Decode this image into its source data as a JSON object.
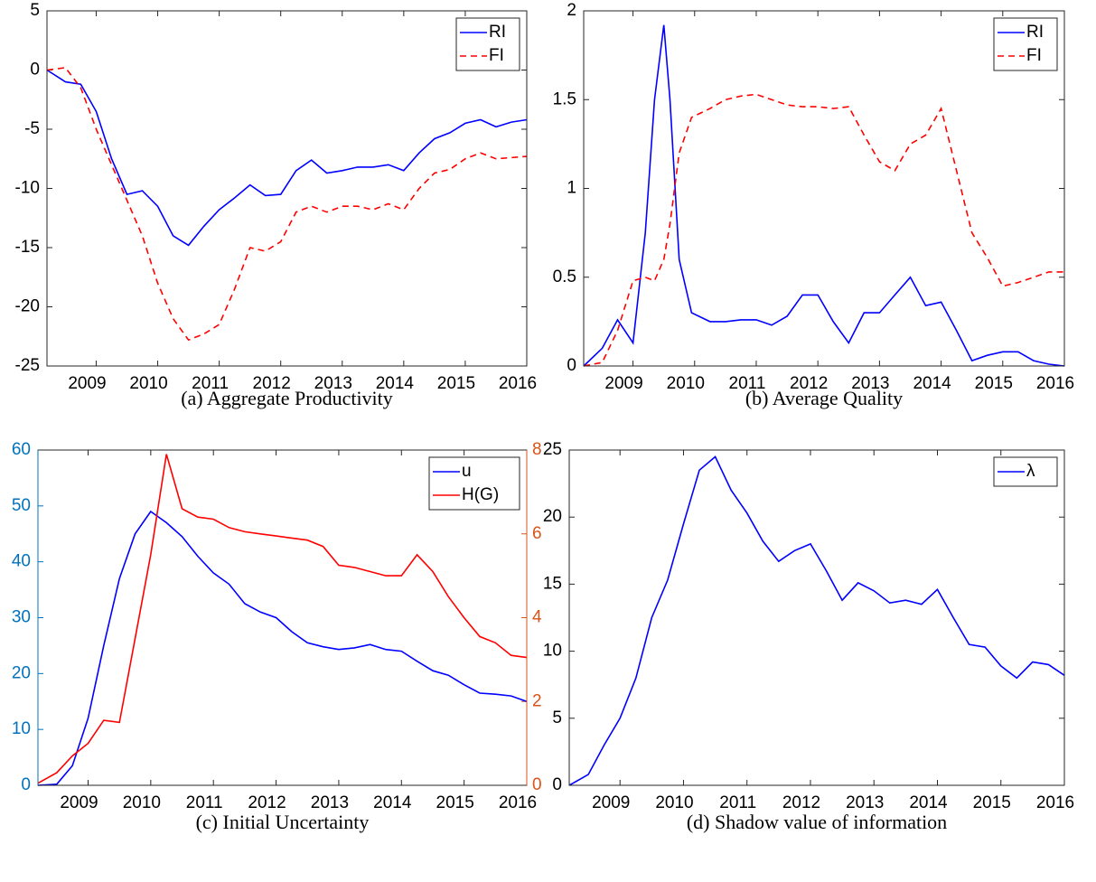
{
  "chart_data": [
    {
      "type": "line",
      "caption": "(a) Aggregate Productivity",
      "x": [
        2008.2,
        2008.5,
        2008.75,
        2009,
        2009.25,
        2009.5,
        2009.75,
        2010,
        2010.25,
        2010.5,
        2010.75,
        2011,
        2011.25,
        2011.5,
        2011.75,
        2012,
        2012.25,
        2012.5,
        2012.75,
        2013,
        2013.25,
        2013.5,
        2013.75,
        2014,
        2014.25,
        2014.5,
        2014.75,
        2015,
        2015.25,
        2015.5,
        2015.75,
        2016
      ],
      "series": [
        {
          "name": "RI",
          "color": "#0000ff",
          "style": "solid",
          "values": [
            0,
            -1,
            -1.2,
            -3.5,
            -7.5,
            -10.5,
            -10.2,
            -11.5,
            -14,
            -14.8,
            -13.2,
            -11.8,
            -10.8,
            -9.7,
            -10.6,
            -10.5,
            -8.5,
            -7.6,
            -8.7,
            -8.5,
            -8.2,
            -8.2,
            -8,
            -8.5,
            -7,
            -5.8,
            -5.3,
            -4.5,
            -4.2,
            -4.8,
            -4.4,
            -4.2
          ]
        },
        {
          "name": "FI",
          "color": "#ff0000",
          "style": "dashed",
          "values": [
            0,
            0.2,
            -1.5,
            -5,
            -8,
            -11,
            -14,
            -18,
            -21,
            -22.8,
            -22.3,
            -21.5,
            -18.5,
            -15,
            -15.3,
            -14.5,
            -12,
            -11.5,
            -12,
            -11.5,
            -11.5,
            -11.8,
            -11.3,
            -11.8,
            -10,
            -8.7,
            -8.4,
            -7.5,
            -7,
            -7.5,
            -7.4,
            -7.3
          ]
        }
      ],
      "xlim": [
        2008.2,
        2016
      ],
      "xticks": [
        2009,
        2010,
        2011,
        2012,
        2013,
        2014,
        2015,
        2016
      ],
      "ylim": [
        -25,
        5
      ],
      "yticks": [
        -25,
        -20,
        -15,
        -10,
        -5,
        0,
        5
      ],
      "legend": "northeast"
    },
    {
      "type": "line",
      "caption": "(b) Average Quality",
      "x": [
        2008.2,
        2008.5,
        2008.75,
        2009,
        2009.2,
        2009.35,
        2009.5,
        2009.6,
        2009.75,
        2009.95,
        2010.25,
        2010.5,
        2010.75,
        2011,
        2011.25,
        2011.5,
        2011.75,
        2012,
        2012.25,
        2012.5,
        2012.75,
        2013,
        2013.25,
        2013.5,
        2013.75,
        2014,
        2014.25,
        2014.5,
        2014.75,
        2015,
        2015.25,
        2015.5,
        2015.75,
        2016
      ],
      "series": [
        {
          "name": "RI",
          "color": "#0000ff",
          "style": "solid",
          "values": [
            0,
            0.1,
            0.26,
            0.13,
            0.75,
            1.5,
            1.92,
            1.5,
            0.6,
            0.3,
            0.25,
            0.25,
            0.26,
            0.26,
            0.23,
            0.28,
            0.4,
            0.4,
            0.25,
            0.13,
            0.3,
            0.3,
            0.4,
            0.5,
            0.34,
            0.36,
            0.2,
            0.03,
            0.06,
            0.08,
            0.08,
            0.03,
            0.01,
            0
          ]
        },
        {
          "name": "FI",
          "color": "#ff0000",
          "style": "dashed",
          "values": [
            0,
            0.02,
            0.2,
            0.48,
            0.5,
            0.48,
            0.6,
            0.8,
            1.2,
            1.4,
            1.45,
            1.5,
            1.52,
            1.53,
            1.5,
            1.47,
            1.46,
            1.46,
            1.45,
            1.46,
            1.3,
            1.15,
            1.1,
            1.25,
            1.3,
            1.45,
            1.1,
            0.75,
            0.61,
            0.45,
            0.47,
            0.5,
            0.53,
            0.53
          ]
        }
      ],
      "xlim": [
        2008.2,
        2016
      ],
      "xticks": [
        2009,
        2010,
        2011,
        2012,
        2013,
        2014,
        2015,
        2016
      ],
      "ylim": [
        0,
        2
      ],
      "yticks": [
        0,
        0.5,
        1,
        1.5,
        2
      ],
      "legend": "northeast"
    },
    {
      "type": "line",
      "caption": "(c) Initial Uncertainty",
      "x": [
        2008.2,
        2008.5,
        2008.75,
        2009,
        2009.25,
        2009.5,
        2009.75,
        2010,
        2010.25,
        2010.5,
        2010.75,
        2011,
        2011.25,
        2011.5,
        2011.75,
        2012,
        2012.25,
        2012.5,
        2012.75,
        2013,
        2013.25,
        2013.5,
        2013.75,
        2014,
        2014.25,
        2014.5,
        2014.75,
        2015,
        2015.25,
        2015.5,
        2015.75,
        2016
      ],
      "series": [
        {
          "name": "u",
          "color": "#0000ff",
          "style": "solid",
          "values": [
            0,
            0.2,
            3.5,
            12,
            25,
            37,
            45,
            49,
            47,
            44.5,
            41,
            38,
            36,
            32.5,
            31,
            30,
            27.5,
            25.5,
            24.8,
            24.3,
            24.6,
            25.2,
            24.3,
            24,
            22.2,
            20.5,
            19.7,
            18,
            16.5,
            16.3,
            16,
            15
          ]
        },
        {
          "name": "H(G)",
          "color": "#ff0000",
          "style": "solid",
          "axis": "y2",
          "values": [
            0.05,
            0.3,
            0.7,
            1.0,
            1.55,
            1.5,
            3.5,
            5.5,
            7.9,
            6.6,
            6.4,
            6.35,
            6.15,
            6.05,
            6.0,
            5.95,
            5.9,
            5.85,
            5.7,
            5.25,
            5.2,
            5.1,
            5.0,
            5.0,
            5.5,
            5.1,
            4.5,
            4.0,
            3.55,
            3.4,
            3.1,
            3.05
          ]
        }
      ],
      "xlim": [
        2008.2,
        2016
      ],
      "xticks": [
        2009,
        2010,
        2011,
        2012,
        2013,
        2014,
        2015,
        2016
      ],
      "ylim": [
        0,
        60
      ],
      "yticks": [
        0,
        10,
        20,
        30,
        40,
        50,
        60
      ],
      "ycolor": "#0072bd",
      "y2lim": [
        0,
        8
      ],
      "y2ticks": [
        0,
        2,
        4,
        6,
        8
      ],
      "y2color": "#d95319",
      "legend": "northeast"
    },
    {
      "type": "line",
      "caption": "(d) Shadow value of information",
      "x": [
        2008.2,
        2008.5,
        2008.75,
        2009,
        2009.25,
        2009.5,
        2009.75,
        2010,
        2010.25,
        2010.5,
        2010.75,
        2011,
        2011.25,
        2011.5,
        2011.75,
        2012,
        2012.25,
        2012.5,
        2012.75,
        2013,
        2013.25,
        2013.5,
        2013.75,
        2014,
        2014.25,
        2014.5,
        2014.75,
        2015,
        2015.25,
        2015.5,
        2015.75,
        2016
      ],
      "series": [
        {
          "name": "λ",
          "color": "#0000ff",
          "style": "solid",
          "values": [
            0,
            0.8,
            3,
            5,
            8,
            12.5,
            15.3,
            19.5,
            23.5,
            24.5,
            22,
            20.3,
            18.2,
            16.7,
            17.5,
            18,
            16,
            13.8,
            15.1,
            14.5,
            13.6,
            13.8,
            13.5,
            14.6,
            12.5,
            10.5,
            10.3,
            8.9,
            8,
            9.2,
            9,
            8.2
          ]
        }
      ],
      "xlim": [
        2008.2,
        2016
      ],
      "xticks": [
        2009,
        2010,
        2011,
        2012,
        2013,
        2014,
        2015,
        2016
      ],
      "ylim": [
        0,
        25
      ],
      "yticks": [
        0,
        5,
        10,
        15,
        20,
        25
      ],
      "legend": "northeast"
    }
  ]
}
